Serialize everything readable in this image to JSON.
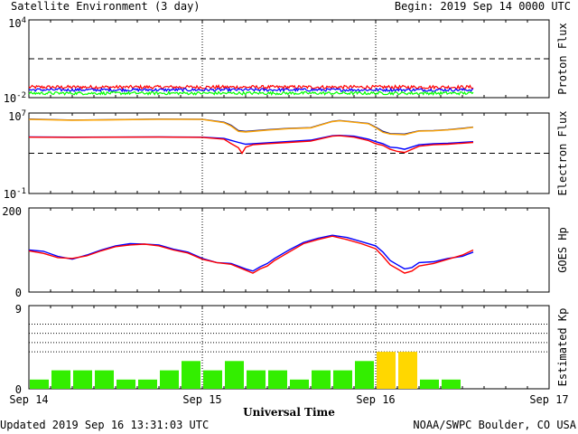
{
  "header": {
    "title": "Satellite Environment (3 day)",
    "begin": "Begin:  2019 Sep 14 0000 UTC"
  },
  "footer": {
    "updated": "Updated 2019 Sep 16 13:31:03 UTC",
    "credit": "NOAA/SWPC Boulder, CO USA"
  },
  "x_axis": {
    "label": "Universal Time",
    "ticks": [
      "Sep 14",
      "Sep 15",
      "Sep 16",
      "Sep 17"
    ],
    "range_hours": [
      0,
      72
    ]
  },
  "colors": {
    "red": "#ff0000",
    "blue": "#0000ff",
    "green": "#00ff00",
    "orange": "#ffa500",
    "kp_normal": "#33ee00",
    "kp_storm": "#ffd700"
  },
  "chart_data": [
    {
      "type": "line",
      "panel": "proton",
      "ylabel": "Proton Flux",
      "yscale": "log",
      "ylim": [
        0.01,
        10000
      ],
      "y_tick_labels": [
        {
          "base": "10",
          "exp": "4"
        },
        {
          "base": "10",
          "exp": "-2"
        }
      ],
      "threshold": 10,
      "x_range_hours": [
        0,
        61.5
      ],
      "series": [
        {
          "color": "#ff0000",
          "level": 0.065,
          "noise": 1.35
        },
        {
          "color": "#0000ff",
          "level": 0.04,
          "noise": 1.3
        },
        {
          "color": "#00ff00",
          "level": 0.022,
          "noise": 1.3
        }
      ]
    },
    {
      "type": "line",
      "panel": "electron",
      "ylabel": "Electron Flux",
      "yscale": "log",
      "ylim": [
        0.1,
        10000000
      ],
      "y_tick_labels": [
        {
          "base": "10",
          "exp": "7"
        },
        {
          "base": "10",
          "exp": "-1"
        }
      ],
      "threshold": 1000,
      "series": [
        {
          "color": "#0000ff",
          "x": [
            0,
            6,
            12,
            18,
            24,
            27,
            29,
            30,
            31,
            33,
            36,
            39,
            42,
            43,
            45,
            47,
            48,
            49,
            50,
            51,
            52,
            54,
            56,
            58,
            60,
            61.5
          ],
          "y": [
            42000,
            40000,
            41000,
            42000,
            40000,
            30000,
            12000,
            8000,
            9000,
            11000,
            15000,
            20000,
            55000,
            60000,
            50000,
            25000,
            14000,
            9000,
            4000,
            3500,
            2500,
            7000,
            9000,
            10000,
            12000,
            14000
          ]
        },
        {
          "color": "#ff0000",
          "x": [
            0,
            6,
            12,
            18,
            24,
            27,
            28,
            29,
            29.5,
            30,
            31,
            33,
            36,
            39,
            42,
            43,
            45,
            47,
            48,
            49,
            50,
            51,
            52,
            54,
            56,
            58,
            60,
            61.5
          ],
          "y": [
            40000,
            38000,
            40000,
            41000,
            38000,
            25000,
            9000,
            3500,
            1000,
            4000,
            7000,
            9000,
            12000,
            16000,
            50000,
            55000,
            40000,
            18000,
            9000,
            6000,
            2500,
            1500,
            1200,
            5000,
            7000,
            8000,
            10000,
            12000
          ]
        },
        {
          "color": "#1a1a80",
          "x": [
            0,
            6,
            12,
            18,
            24,
            27,
            28,
            29,
            30,
            33,
            36,
            39,
            42,
            43,
            45,
            47,
            48,
            49,
            50,
            52,
            54,
            56,
            58,
            60,
            61.5
          ],
          "y": [
            2500000,
            2000000,
            2200000,
            2500000,
            2400000,
            1200000,
            600000,
            180000,
            150000,
            220000,
            300000,
            350000,
            1500000,
            1800000,
            1300000,
            900000,
            400000,
            150000,
            90000,
            80000,
            170000,
            180000,
            220000,
            300000,
            400000
          ]
        },
        {
          "color": "#ffa500",
          "x": [
            0,
            6,
            12,
            18,
            24,
            27,
            28,
            29,
            30,
            33,
            36,
            39,
            42,
            43,
            45,
            47,
            48,
            49,
            50,
            52,
            54,
            56,
            58,
            60,
            61.5
          ],
          "y": [
            2300000,
            1900000,
            2100000,
            2400000,
            2300000,
            1100000,
            500000,
            150000,
            130000,
            200000,
            280000,
            330000,
            1400000,
            1700000,
            1200000,
            850000,
            350000,
            120000,
            80000,
            70000,
            160000,
            170000,
            210000,
            280000,
            380000
          ]
        }
      ]
    },
    {
      "type": "line",
      "panel": "goes_hp",
      "ylabel": "GOES Hp",
      "ylim": [
        0,
        200
      ],
      "y_tick_labels": [
        "200",
        "0"
      ],
      "series": [
        {
          "color": "#0000ff",
          "x": [
            0,
            2,
            4,
            6,
            8,
            10,
            12,
            14,
            16,
            18,
            20,
            22,
            24,
            26,
            28,
            30,
            31,
            32,
            33,
            34,
            36,
            38,
            40,
            42,
            44,
            46,
            48,
            49,
            50,
            51,
            52,
            53,
            54,
            56,
            58,
            60,
            61.5
          ],
          "y": [
            100,
            97,
            85,
            78,
            88,
            100,
            110,
            115,
            114,
            112,
            102,
            95,
            80,
            70,
            68,
            55,
            50,
            60,
            68,
            80,
            100,
            118,
            128,
            135,
            130,
            120,
            110,
            95,
            75,
            65,
            55,
            58,
            70,
            72,
            80,
            85,
            95
          ]
        },
        {
          "color": "#ff0000",
          "x": [
            0,
            2,
            4,
            6,
            8,
            10,
            12,
            14,
            16,
            18,
            20,
            22,
            24,
            26,
            28,
            30,
            31,
            32,
            33,
            34,
            36,
            38,
            40,
            42,
            44,
            46,
            48,
            49,
            50,
            51,
            52,
            53,
            54,
            56,
            58,
            60,
            61.5
          ],
          "y": [
            98,
            92,
            82,
            80,
            86,
            98,
            108,
            112,
            114,
            110,
            100,
            93,
            78,
            70,
            66,
            52,
            45,
            55,
            62,
            75,
            95,
            115,
            125,
            133,
            125,
            115,
            103,
            85,
            65,
            55,
            45,
            50,
            62,
            68,
            78,
            88,
            100
          ]
        }
      ]
    },
    {
      "type": "bar",
      "panel": "kp",
      "ylabel": "Estimated Kp",
      "ylim": [
        0,
        9
      ],
      "y_tick_labels": [
        "9",
        "0"
      ],
      "bin_hours": 3,
      "values": [
        1,
        2,
        2,
        2,
        1,
        1,
        2,
        3,
        2,
        3,
        2,
        2,
        1,
        2,
        2,
        3,
        4,
        4,
        1,
        1
      ]
    }
  ]
}
